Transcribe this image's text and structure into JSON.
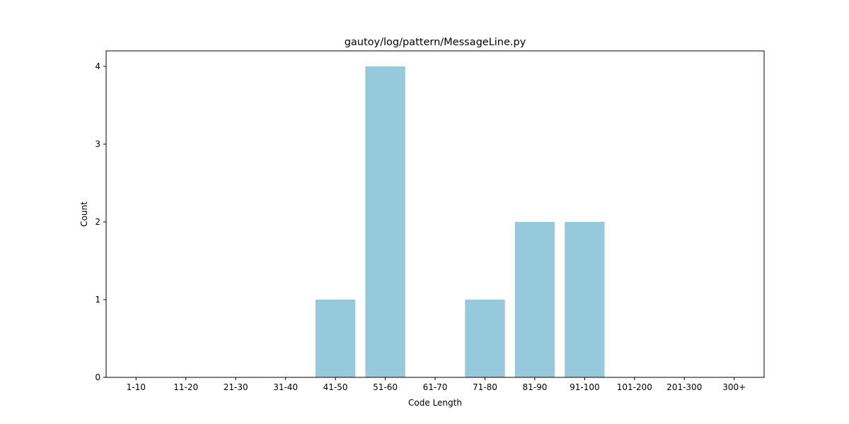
{
  "chart_data": {
    "type": "bar",
    "title": "gautoy/log/pattern/MessageLine.py",
    "xlabel": "Code Length",
    "ylabel": "Count",
    "categories": [
      "1-10",
      "11-20",
      "21-30",
      "31-40",
      "41-50",
      "51-60",
      "61-70",
      "71-80",
      "81-90",
      "91-100",
      "101-200",
      "201-300",
      "300+"
    ],
    "values": [
      0,
      0,
      0,
      0,
      1,
      4,
      0,
      1,
      2,
      2,
      0,
      0,
      0
    ],
    "ylim": [
      0,
      4.2
    ],
    "yticks": [
      0,
      1,
      2,
      3,
      4
    ],
    "bar_color": "#96c9dc",
    "grid": false,
    "legend": "none"
  }
}
